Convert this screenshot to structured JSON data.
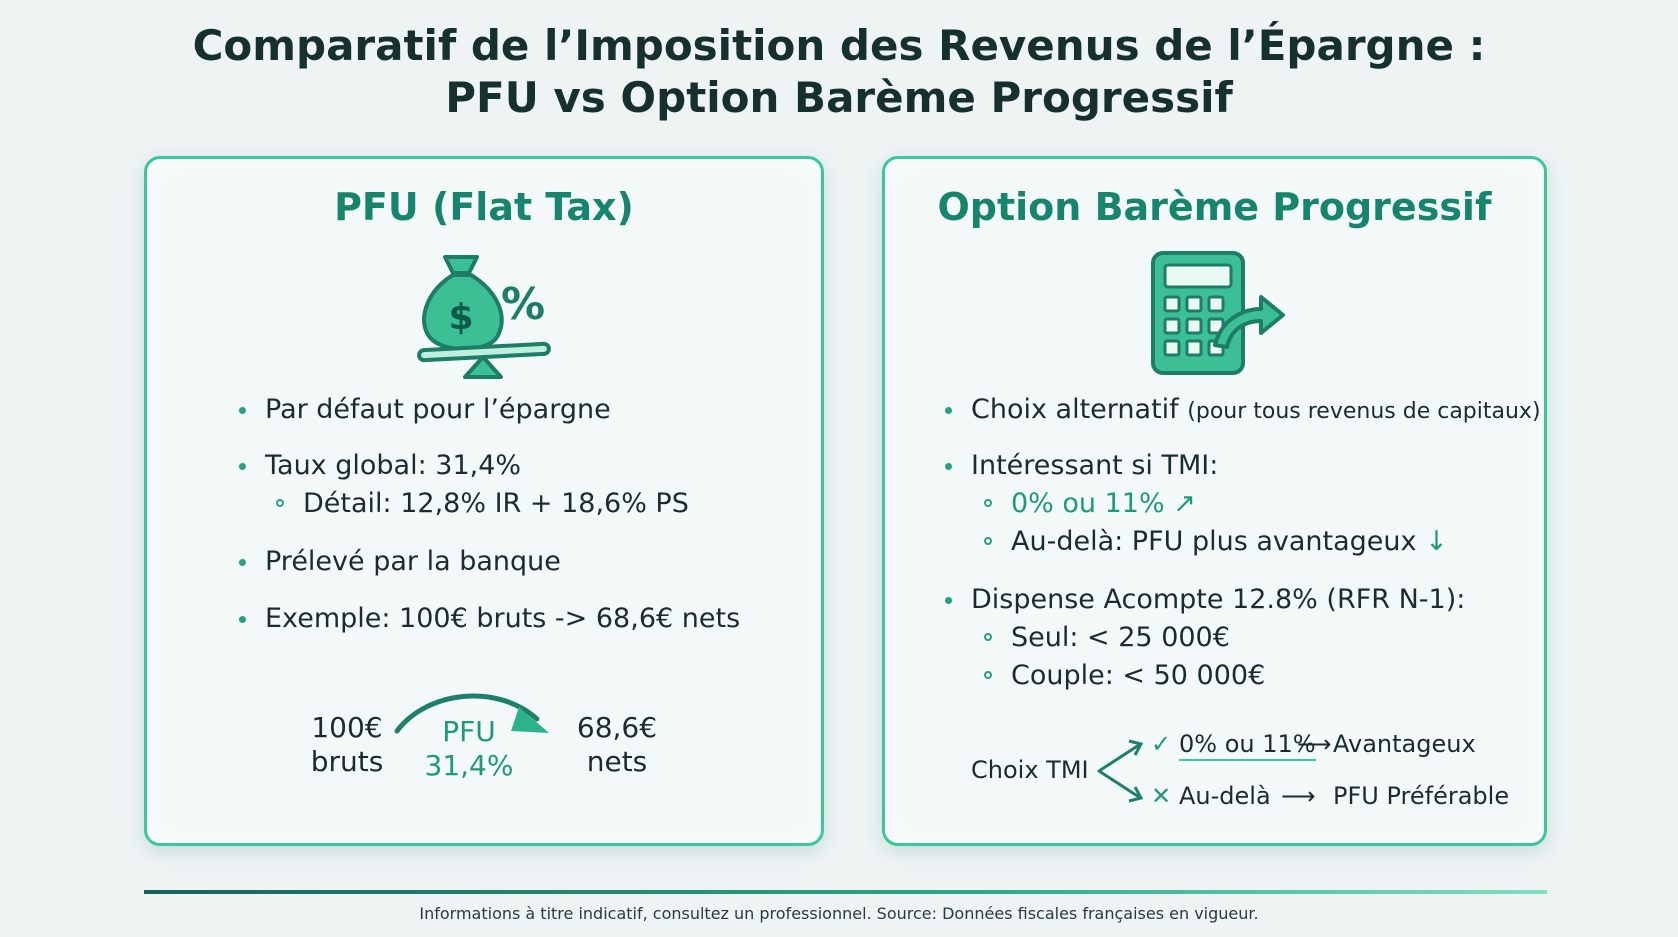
{
  "title": {
    "line1": "Comparatif de l’Imposition des Revenus de l’Épargne :",
    "line2": "PFU vs Option Barème Progressif"
  },
  "pfu": {
    "heading": "PFU (Flat Tax)",
    "icon": "money-bag-percent-scale-icon",
    "bullets": {
      "default": "Par défaut pour l’épargne",
      "rate": "Taux global: 31,4%",
      "rate_detail": "Détail: 12,8% IR + 18,6% PS",
      "collected": "Prélevé par la banque",
      "example": "Exemple: 100€ bruts -> 68,6€ nets"
    },
    "flow": {
      "gross_amount": "100€",
      "gross_label": "bruts",
      "arrow_label": "PFU",
      "arrow_rate": "31,4%",
      "net_amount": "68,6€",
      "net_label": "nets"
    }
  },
  "bareme": {
    "heading": "Option Barème Progressif",
    "icon": "calculator-arrow-icon",
    "bullets": {
      "choice": "Choix alternatif",
      "choice_note": "(pour tous revenus de capitaux)",
      "interesting": "Intéressant si TMI:",
      "low_tmi": "0% ou 11%",
      "above": "Au-delà: PFU plus avantageux",
      "exemption": "Dispense Acompte 12.8% (RFR N-1):",
      "single": "Seul: < 25 000€",
      "couple": "Couple: < 50 000€"
    },
    "tmi_choice": {
      "label": "Choix TMI",
      "yes_condition": "0% ou 11%",
      "yes_result": "Avantageux",
      "no_condition": "Au-delà",
      "no_result": "PFU Préférable"
    }
  },
  "footer": "Informations à titre indicatif, consultez un professionnel. Source: Données fiscales françaises en vigueur.",
  "colors": {
    "accent": "#1e9a78",
    "heading_green": "#17856d",
    "card_border": "#3cc79a",
    "background": "#eef3f4"
  }
}
